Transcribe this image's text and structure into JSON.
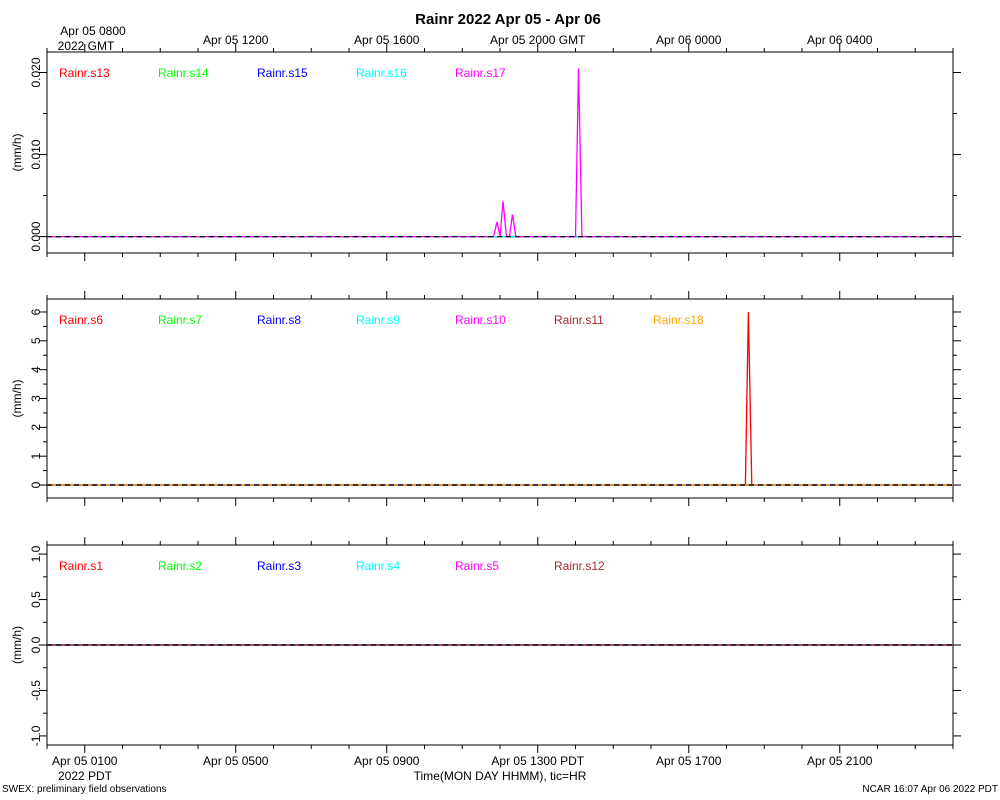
{
  "title": "Rainr 2022 Apr 05 - Apr 06",
  "top_axis": {
    "first_label_line1": "Apr 05 0800",
    "first_label_line2": "2022 GMT",
    "labels": [
      "Apr 05 1200",
      "Apr 05 1600",
      "Apr 05 2000 GMT",
      "Apr 06 0000",
      "Apr 06 0400"
    ]
  },
  "bottom_axis": {
    "labels": [
      "Apr 05 0100",
      "Apr 05 0500",
      "Apr 05 0900",
      "Apr 05 1300 PDT",
      "Apr 05 1700",
      "Apr 05 2100"
    ],
    "first_label_line2": "2022 PDT",
    "xlabel": "Time(MON DAY HHMM), tic=HR"
  },
  "footer": {
    "left": "SWEX: preliminary field observations",
    "right": "NCAR 16:07 Apr 06 2022 PDT"
  },
  "chart_data": [
    {
      "type": "line",
      "ylabel": "(mm/h)",
      "xlabel": "Time(MON DAY HHMM), tic=HR",
      "x_units": "hours since Apr 05 0100 PDT",
      "xlim": [
        -1.0,
        23.0
      ],
      "ylim": [
        -0.002,
        0.0225
      ],
      "yticks": [
        0.0,
        0.01,
        0.02
      ],
      "ytick_labels": [
        "0.000",
        "0.010",
        "0.020"
      ],
      "legend_placement": "top-left",
      "series": [
        {
          "name": "Rainr.s13",
          "color": "#ff0000",
          "x": [
            -1.0,
            23.0
          ],
          "values": [
            0,
            0
          ]
        },
        {
          "name": "Rainr.s14",
          "color": "#00ff00",
          "x": [
            -1.0,
            23.0
          ],
          "values": [
            0,
            0
          ]
        },
        {
          "name": "Rainr.s15",
          "color": "#0000ff",
          "x": [
            -1.0,
            23.0
          ],
          "values": [
            0,
            0
          ]
        },
        {
          "name": "Rainr.s16",
          "color": "#00ffff",
          "x": [
            -1.0,
            23.0
          ],
          "values": [
            0,
            0
          ]
        },
        {
          "name": "Rainr.s17",
          "color": "#ff00ff",
          "x": [
            -1.0,
            10.83,
            10.92,
            11.0,
            11.08,
            11.17,
            11.25,
            11.33,
            11.42,
            13.0,
            13.08,
            13.17,
            23.0
          ],
          "values": [
            0,
            0,
            0.0018,
            0,
            0.0043,
            0,
            0,
            0.0027,
            0,
            0,
            0.0205,
            0,
            0
          ]
        }
      ]
    },
    {
      "type": "line",
      "ylabel": "(mm/h)",
      "x_units": "hours since Apr 05 0100 PDT",
      "xlim": [
        -1.0,
        23.0
      ],
      "ylim": [
        -0.45,
        6.45
      ],
      "yticks": [
        0,
        1,
        2,
        3,
        4,
        5,
        6
      ],
      "ytick_labels": [
        "0",
        "1",
        "2",
        "3",
        "4",
        "5",
        "6"
      ],
      "legend_placement": "top-left",
      "series": [
        {
          "name": "Rainr.s6",
          "color": "#ff0000",
          "x": [
            -1.0,
            17.5,
            17.58,
            17.67,
            23.0
          ],
          "values": [
            0,
            0,
            6.0,
            0,
            0
          ]
        },
        {
          "name": "Rainr.s7",
          "color": "#00ff00",
          "x": [
            -1.0,
            23.0
          ],
          "values": [
            0,
            0
          ]
        },
        {
          "name": "Rainr.s8",
          "color": "#0000ff",
          "x": [
            -1.0,
            23.0
          ],
          "values": [
            0,
            0
          ]
        },
        {
          "name": "Rainr.s9",
          "color": "#00ffff",
          "x": [
            -1.0,
            23.0
          ],
          "values": [
            0,
            0
          ]
        },
        {
          "name": "Rainr.s10",
          "color": "#ff00ff",
          "x": [
            -1.0,
            23.0
          ],
          "values": [
            0,
            0
          ]
        },
        {
          "name": "Rainr.s11",
          "color": "#a52a2a",
          "x": [
            -1.0,
            23.0
          ],
          "values": [
            0,
            0
          ]
        },
        {
          "name": "Rainr.s18",
          "color": "#ffa500",
          "x": [
            -1.0,
            23.0
          ],
          "values": [
            0,
            0
          ]
        }
      ]
    },
    {
      "type": "line",
      "ylabel": "(mm/h)",
      "x_units": "hours since Apr 05 0100 PDT",
      "xlim": [
        -1.0,
        23.0
      ],
      "ylim": [
        -1.1,
        1.1
      ],
      "yticks": [
        -1.0,
        -0.5,
        0.0,
        0.5,
        1.0
      ],
      "ytick_labels": [
        "-1.0",
        "-0.5",
        "0.0",
        "0.5",
        "1.0"
      ],
      "legend_placement": "top-left",
      "series": [
        {
          "name": "Rainr.s1",
          "color": "#ff0000",
          "x": [
            -1.0,
            23.0
          ],
          "values": [
            0,
            0
          ]
        },
        {
          "name": "Rainr.s2",
          "color": "#00ff00",
          "x": [
            -1.0,
            23.0
          ],
          "values": [
            0,
            0
          ]
        },
        {
          "name": "Rainr.s3",
          "color": "#0000ff",
          "x": [
            -1.0,
            23.0
          ],
          "values": [
            0,
            0
          ]
        },
        {
          "name": "Rainr.s4",
          "color": "#00ffff",
          "x": [
            -1.0,
            23.0
          ],
          "values": [
            0,
            0
          ]
        },
        {
          "name": "Rainr.s5",
          "color": "#ff00ff",
          "x": [
            -1.0,
            23.0
          ],
          "values": [
            0,
            0
          ]
        },
        {
          "name": "Rainr.s12",
          "color": "#a52a2a",
          "x": [
            -1.0,
            23.0
          ],
          "values": [
            0,
            0
          ]
        }
      ]
    }
  ]
}
